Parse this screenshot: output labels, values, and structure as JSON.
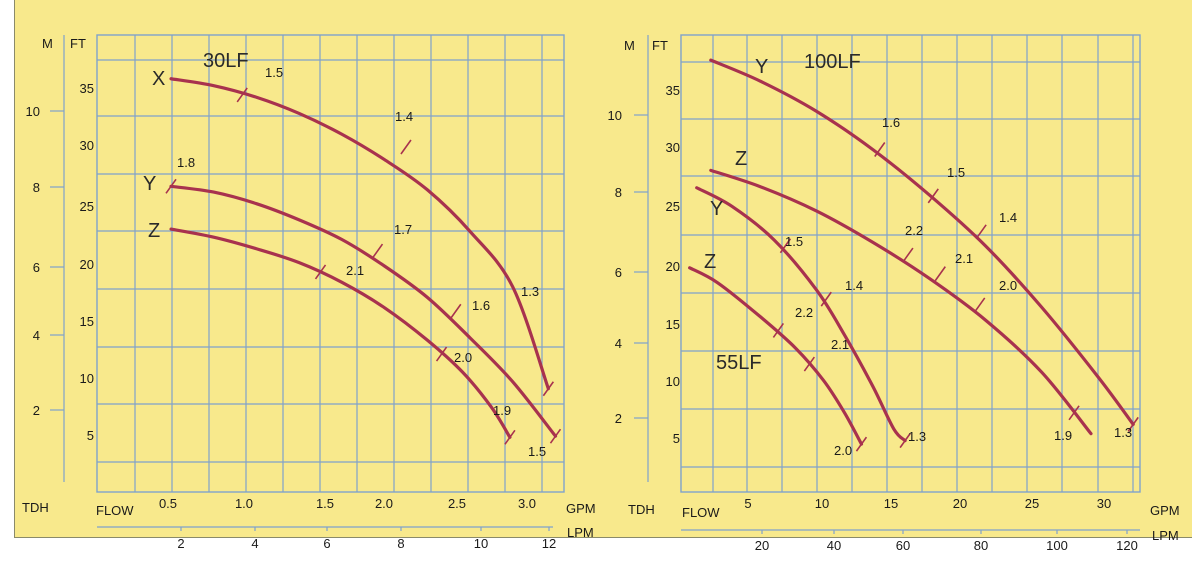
{
  "background_color": "#f8e98c",
  "grid_color": "#7fa2cc",
  "curve_color": "#a8324e",
  "chart_data": [
    {
      "type": "line",
      "title": "30LF",
      "left_axis_label": "M",
      "right_axis_label": "FT",
      "m_ticks": [
        "2",
        "4",
        "6",
        "8",
        "10"
      ],
      "ft_ticks": [
        "5",
        "10",
        "15",
        "20",
        "25",
        "30",
        "35"
      ],
      "gpm_ticks": [
        "0.5",
        "1.0",
        "1.5",
        "2.0",
        "2.5",
        "3.0"
      ],
      "lpm_ticks": [
        "2",
        "4",
        "6",
        "8",
        "10",
        "12"
      ],
      "corner_labels": {
        "tdh": "TDH",
        "flow": "FLOW",
        "gpm": "GPM",
        "lpm": "LPM"
      },
      "xlim": [
        0.2,
        3.3
      ],
      "ylim": [
        0,
        40
      ],
      "series": [
        {
          "name": "X",
          "x": [
            0.5,
            0.8,
            1.1,
            1.4,
            1.7,
            2.0,
            2.3,
            2.6,
            2.9,
            3.15
          ],
          "y": [
            35.8,
            35.2,
            34.2,
            32.8,
            31.0,
            28.8,
            26.2,
            22.6,
            17.8,
            9.0
          ]
        },
        {
          "name": "Y",
          "x": [
            0.5,
            0.8,
            1.1,
            1.4,
            1.7,
            2.0,
            2.3,
            2.6,
            2.9,
            3.2
          ],
          "y": [
            26.5,
            26.0,
            25.0,
            23.6,
            21.9,
            19.6,
            16.9,
            13.4,
            9.6,
            4.9
          ]
        },
        {
          "name": "Z",
          "x": [
            0.5,
            0.8,
            1.1,
            1.4,
            1.7,
            2.0,
            2.3,
            2.55,
            2.75,
            2.88
          ],
          "y": [
            22.8,
            22.1,
            21.1,
            19.9,
            18.2,
            16.0,
            13.2,
            10.4,
            7.4,
            4.8
          ]
        }
      ],
      "annotations": [
        {
          "text": "1.5",
          "series": "X",
          "x": 1.0,
          "y": 34.4,
          "tick": true
        },
        {
          "text": "1.4",
          "series": "X",
          "x": 2.15,
          "y": 29.9,
          "tick": true
        },
        {
          "text": "1.3",
          "series": "X",
          "x": 3.15,
          "y": 9.0,
          "tick": true
        },
        {
          "text": "1.8",
          "series": "Y",
          "x": 0.5,
          "y": 26.5,
          "tick": true
        },
        {
          "text": "1.7",
          "series": "Y",
          "x": 1.95,
          "y": 20.9,
          "tick": true
        },
        {
          "text": "1.6",
          "series": "Y",
          "x": 2.5,
          "y": 15.7,
          "tick": true
        },
        {
          "text": "1.5",
          "series": "Y",
          "x": 3.2,
          "y": 4.9,
          "tick": true
        },
        {
          "text": "2.1",
          "series": "Z",
          "x": 1.55,
          "y": 19.1,
          "tick": true
        },
        {
          "text": "2.0",
          "series": "Z",
          "x": 2.4,
          "y": 12.0,
          "tick": true
        },
        {
          "text": "1.9",
          "series": "Z",
          "x": 2.88,
          "y": 4.8,
          "tick": true
        }
      ],
      "grid": true
    },
    {
      "type": "line",
      "titles": [
        "100LF",
        "55LF"
      ],
      "left_axis_label": "M",
      "right_axis_label": "FT",
      "m_ticks": [
        "2",
        "4",
        "6",
        "8",
        "10"
      ],
      "ft_ticks": [
        "5",
        "10",
        "15",
        "20",
        "25",
        "30",
        "35"
      ],
      "gpm_ticks": [
        "5",
        "10",
        "15",
        "20",
        "25",
        "30"
      ],
      "lpm_ticks": [
        "20",
        "40",
        "60",
        "80",
        "100",
        "120"
      ],
      "corner_labels": {
        "tdh": "TDH",
        "flow": "FLOW",
        "gpm": "GPM",
        "lpm": "LPM"
      },
      "xlim": [
        1.5,
        33
      ],
      "ylim": [
        0,
        40
      ],
      "series": [
        {
          "name": "Y",
          "group": "100LF",
          "x": [
            2.5,
            6,
            10,
            14,
            18,
            22,
            26,
            30,
            32.5
          ],
          "y": [
            37.4,
            35.6,
            33.0,
            29.7,
            25.8,
            21.4,
            16.1,
            10.1,
            6.0
          ]
        },
        {
          "name": "Z",
          "group": "100LF",
          "x": [
            2.5,
            6,
            10,
            14,
            18,
            22,
            26,
            29.5
          ],
          "y": [
            27.9,
            26.5,
            24.4,
            21.7,
            18.6,
            15.0,
            10.5,
            5.2
          ]
        },
        {
          "name": "Y",
          "group": "55LF",
          "x": [
            1.5,
            4,
            7,
            10,
            12,
            14,
            15.5,
            16.3
          ],
          "y": [
            26.4,
            24.8,
            21.9,
            17.6,
            13.7,
            9.3,
            5.6,
            4.6
          ]
        },
        {
          "name": "Z",
          "group": "55LF",
          "x": [
            1,
            3,
            6,
            8.5,
            10.5,
            12,
            13.2
          ],
          "y": [
            19.5,
            18.2,
            15.3,
            12.6,
            9.8,
            7.0,
            4.3
          ]
        }
      ],
      "annotations": [
        {
          "text": "1.6",
          "series": "Y 100LF",
          "x": 14.5,
          "y": 29.7,
          "tick": true
        },
        {
          "text": "1.5",
          "series": "Y 100LF",
          "x": 18.3,
          "y": 25.7,
          "tick": true
        },
        {
          "text": "1.4",
          "series": "Y 100LF",
          "x": 21.7,
          "y": 22.6,
          "tick": true
        },
        {
          "text": "1.3",
          "series": "Y 100LF",
          "x": 32.5,
          "y": 6.0,
          "tick": true
        },
        {
          "text": "2.2",
          "series": "Z 100LF",
          "x": 16.5,
          "y": 20.6,
          "tick": true
        },
        {
          "text": "2.1",
          "series": "Z 100LF",
          "x": 18.8,
          "y": 19.0,
          "tick": true
        },
        {
          "text": "2.0",
          "series": "Z 100LF",
          "x": 21.6,
          "y": 16.3,
          "tick": true
        },
        {
          "text": "1.9",
          "series": "Z 100LF",
          "x": 28.3,
          "y": 7.0,
          "tick": true
        },
        {
          "text": "1.5",
          "series": "Y 55LF",
          "x": 7.8,
          "y": 21.4,
          "tick": true
        },
        {
          "text": "1.4",
          "series": "Y 55LF",
          "x": 10.7,
          "y": 16.8,
          "tick": true
        },
        {
          "text": "1.3",
          "series": "Y 55LF",
          "x": 16.3,
          "y": 4.6,
          "tick": true
        },
        {
          "text": "2.2",
          "series": "Z 55LF",
          "x": 7.3,
          "y": 14.1,
          "tick": true
        },
        {
          "text": "2.1",
          "series": "Z 55LF",
          "x": 9.5,
          "y": 11.2,
          "tick": true
        },
        {
          "text": "2.0",
          "series": "Z 55LF",
          "x": 13.2,
          "y": 4.3,
          "tick": true
        }
      ],
      "grid": true
    }
  ]
}
